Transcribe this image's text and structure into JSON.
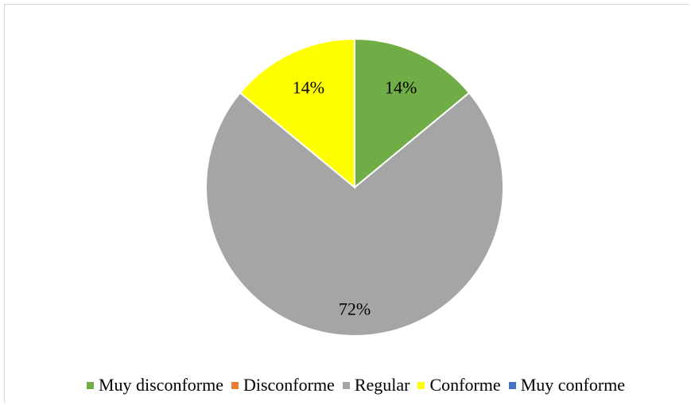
{
  "chart_data": {
    "type": "pie",
    "categories": [
      "Muy disconforme",
      "Disconforme",
      "Regular",
      "Conforme",
      "Muy conforme"
    ],
    "values": [
      14,
      0,
      72,
      14,
      0
    ],
    "value_labels": [
      "14%",
      "",
      "72%",
      "14%",
      ""
    ],
    "colors": [
      "#70ad47",
      "#ed7d31",
      "#a5a5a5",
      "#ffff00",
      "#4472c4"
    ],
    "legend_position": "bottom",
    "start_angle": "12 o'clock",
    "direction": "clockwise"
  }
}
